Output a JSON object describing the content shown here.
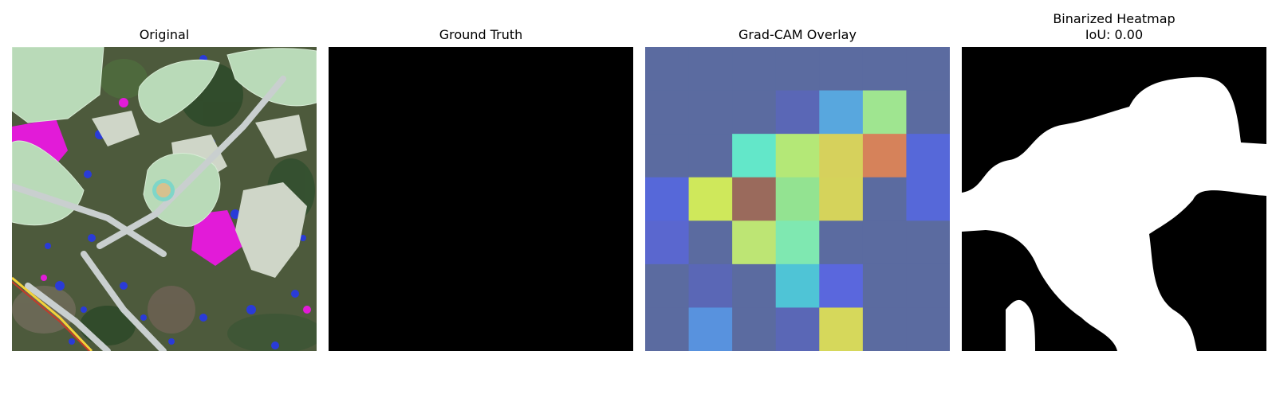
{
  "panels": [
    {
      "title": "Original"
    },
    {
      "title": "Ground Truth"
    },
    {
      "title": "Grad-CAM Overlay"
    },
    {
      "title": "Binarized Heatmap",
      "subtitle": "IoU: 0.00"
    }
  ],
  "gradcam_grid": [
    [
      "#5b6ba0",
      "#5b6ba0",
      "#5b6ba0",
      "#5b6ba0",
      "#5b6ba0",
      "#5b6ba0",
      "#5b6ba0"
    ],
    [
      "#5b6ba0",
      "#5b6ba0",
      "#5b6ba0",
      "#5a67b6",
      "#58a7de",
      "#9fe590",
      "#5b6ba0"
    ],
    [
      "#5b6ba0",
      "#5b6ba0",
      "#63e7c9",
      "#b4e877",
      "#d6d15c",
      "#d6825a",
      "#5668d9"
    ],
    [
      "#5668d9",
      "#cfe85b",
      "#9a6a5c",
      "#93e391",
      "#d5d35b",
      "#5b6ba0",
      "#5668d9"
    ],
    [
      "#5a67cf",
      "#5b6ba0",
      "#bde574",
      "#7fe8b1",
      "#5b6ba0",
      "#5b6ba0",
      "#5b6ba0"
    ],
    [
      "#5b6ba0",
      "#5a67b6",
      "#5b6ba0",
      "#4fc4d6",
      "#5a67dd",
      "#5b6ba0",
      "#5b6ba0"
    ],
    [
      "#5b6ba0",
      "#5892de",
      "#5b6ba0",
      "#5a67b6",
      "#d6d85b",
      "#5b6ba0",
      "#5b6ba0"
    ]
  ]
}
